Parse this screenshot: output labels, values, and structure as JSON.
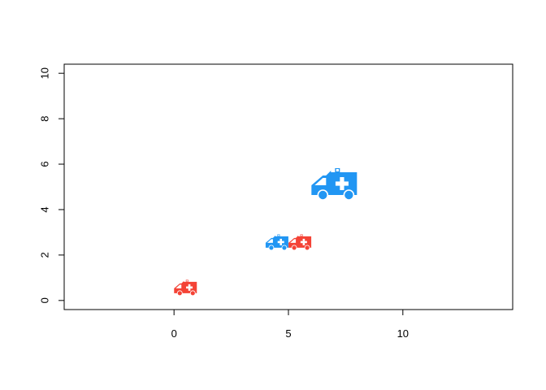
{
  "chart_data": {
    "type": "scatter",
    "title": "",
    "xlabel": "",
    "ylabel": "",
    "xlim": [
      -4.8,
      14.8
    ],
    "ylim": [
      -0.4,
      10.4
    ],
    "x_ticks": [
      0,
      5,
      10
    ],
    "y_ticks": [
      0,
      2,
      4,
      6,
      8,
      10
    ],
    "grid": false,
    "legend": "none",
    "points": [
      {
        "x": 0.5,
        "y": 0.5,
        "color": "#F44336",
        "icon": "ambulance-icon",
        "scale": 1.0
      },
      {
        "x": 4.5,
        "y": 2.5,
        "color": "#2196F3",
        "icon": "ambulance-icon",
        "scale": 1.0
      },
      {
        "x": 5.5,
        "y": 2.5,
        "color": "#F44336",
        "icon": "ambulance-icon",
        "scale": 1.0
      },
      {
        "x": 7.0,
        "y": 5.0,
        "color": "#2196F3",
        "icon": "ambulance-icon",
        "scale": 2.0
      }
    ]
  }
}
